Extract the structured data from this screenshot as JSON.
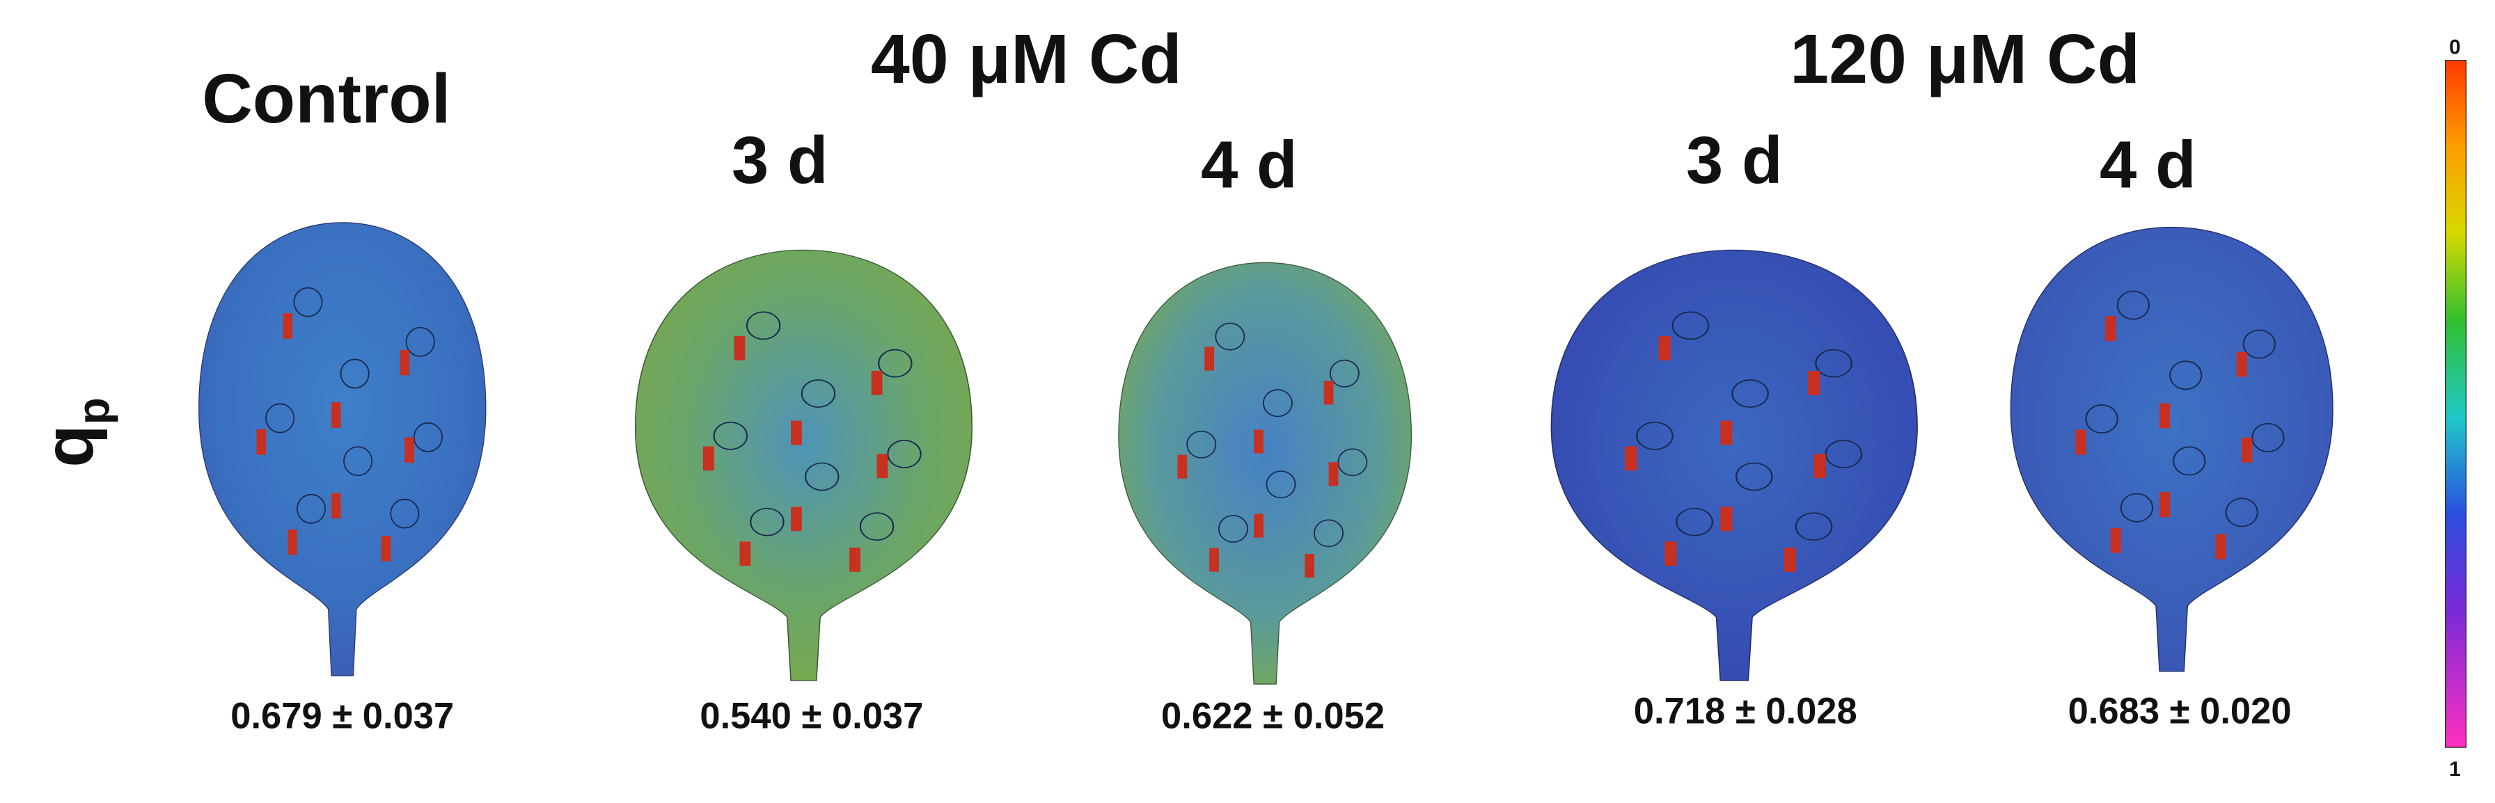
{
  "groups": [
    {
      "title": "Control"
    },
    {
      "title": "40 μM Cd",
      "days": [
        "3 d",
        "4 d"
      ]
    },
    {
      "title": "120 μM Cd",
      "days": [
        "3 d",
        "4 d"
      ]
    }
  ],
  "row_label": {
    "main": "q",
    "sub": "p"
  },
  "leaves": [
    {
      "value": "0.679 ± 0.037"
    },
    {
      "value": "0.540 ± 0.037"
    },
    {
      "value": "0.622 ± 0.052"
    },
    {
      "value": "0.718 ± 0.028"
    },
    {
      "value": "0.683 ± 0.020"
    }
  ],
  "colorbar": {
    "top_label": "0",
    "bottom_label": "1"
  }
}
